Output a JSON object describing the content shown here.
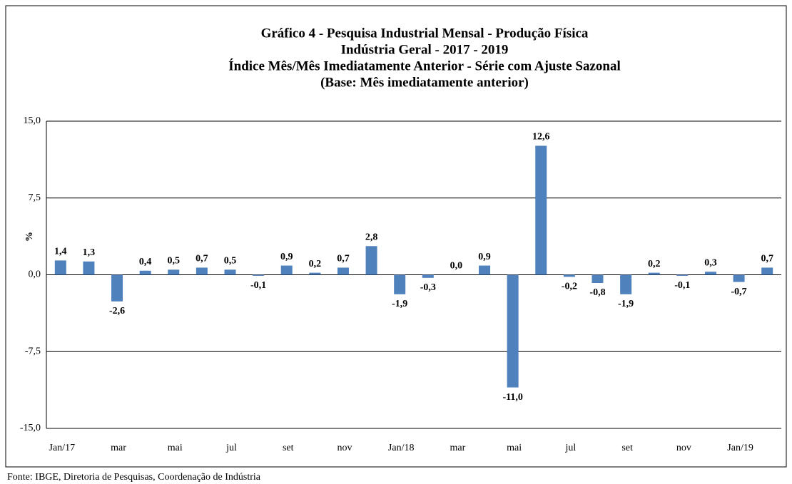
{
  "chart_data": {
    "type": "bar",
    "title": [
      "Gráfico 4 - Pesquisa Industrial Mensal - Produção Física",
      "Indústria Geral - 2017 - 2019",
      "Índice Mês/Mês Imediatamente Anterior - Série com Ajuste Sazonal",
      "(Base: Mês imediatamente anterior)"
    ],
    "y_label": "%",
    "source": "Fonte: IBGE, Diretoria de Pesquisas, Coordenação de Indústria",
    "categories": [
      "Jan/17",
      null,
      "mar",
      null,
      "mai",
      null,
      "jul",
      null,
      "set",
      null,
      "nov",
      null,
      "Jan/18",
      null,
      "mar",
      null,
      "mai",
      null,
      "jul",
      null,
      "set",
      null,
      "nov",
      null,
      "Jan/19",
      null
    ],
    "values": [
      1.4,
      1.3,
      -2.6,
      0.4,
      0.5,
      0.7,
      0.5,
      -0.1,
      0.9,
      0.2,
      0.7,
      2.8,
      -1.9,
      -0.3,
      0.0,
      0.9,
      -11.0,
      12.6,
      -0.2,
      -0.8,
      -1.9,
      0.2,
      -0.1,
      0.3,
      -0.7,
      0.7
    ],
    "value_labels": [
      "1,4",
      "1,3",
      "-2,6",
      "0,4",
      "0,5",
      "0,7",
      "0,5",
      "-0,1",
      "0,9",
      "0,2",
      "0,7",
      "2,8",
      "-1,9",
      "-0,3",
      "0,0",
      "0,9",
      "-11,0",
      "12,6",
      "-0,2",
      "-0,8",
      "-1,9",
      "0,2",
      "-0,1",
      "0,3",
      "-0,7",
      "0,7"
    ],
    "color": "#4f81bd",
    "ylim": [
      -15,
      15
    ],
    "yticks": [
      {
        "value": 15,
        "label": "15,0"
      },
      {
        "value": 7.5,
        "label": "7,5"
      },
      {
        "value": 0,
        "label": "0,0"
      },
      {
        "value": -7.5,
        "label": "-7,5"
      },
      {
        "value": -15,
        "label": "-15,0"
      }
    ],
    "grid": true
  }
}
